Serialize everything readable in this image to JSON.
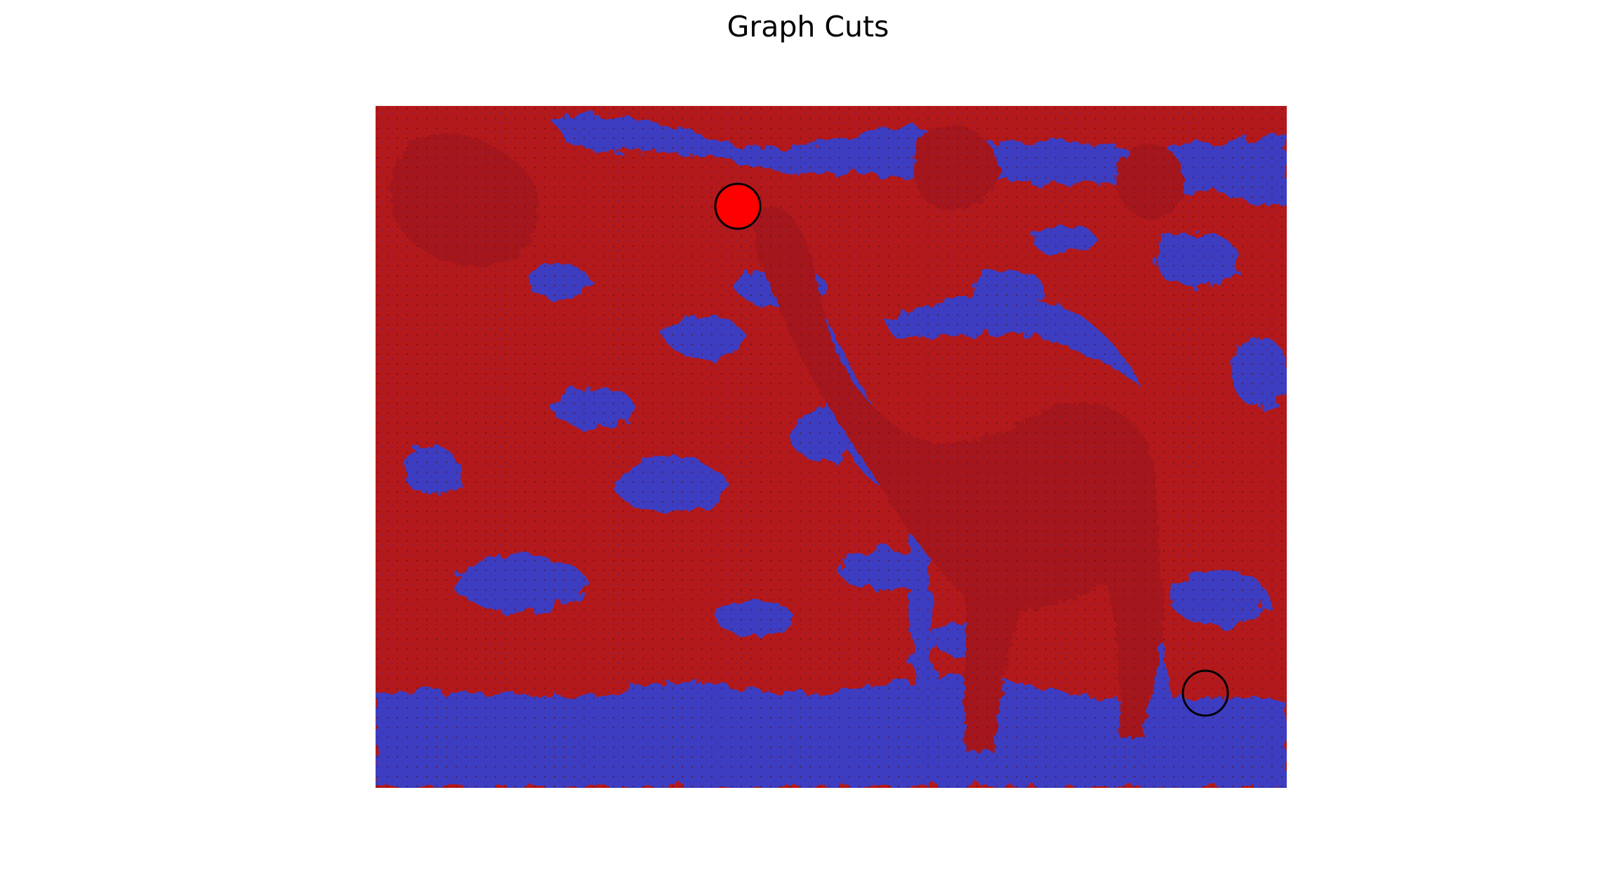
{
  "figure": {
    "title": "Graph Cuts",
    "overlay_colors": {
      "foreground": "#c0161a",
      "background": "#3a3ac8"
    },
    "seed_markers": [
      {
        "name": "foreground-seed",
        "fill": "#ff0000",
        "stroke": "#000000"
      },
      {
        "name": "background-seed",
        "fill": "none",
        "stroke": "#000000"
      }
    ]
  }
}
